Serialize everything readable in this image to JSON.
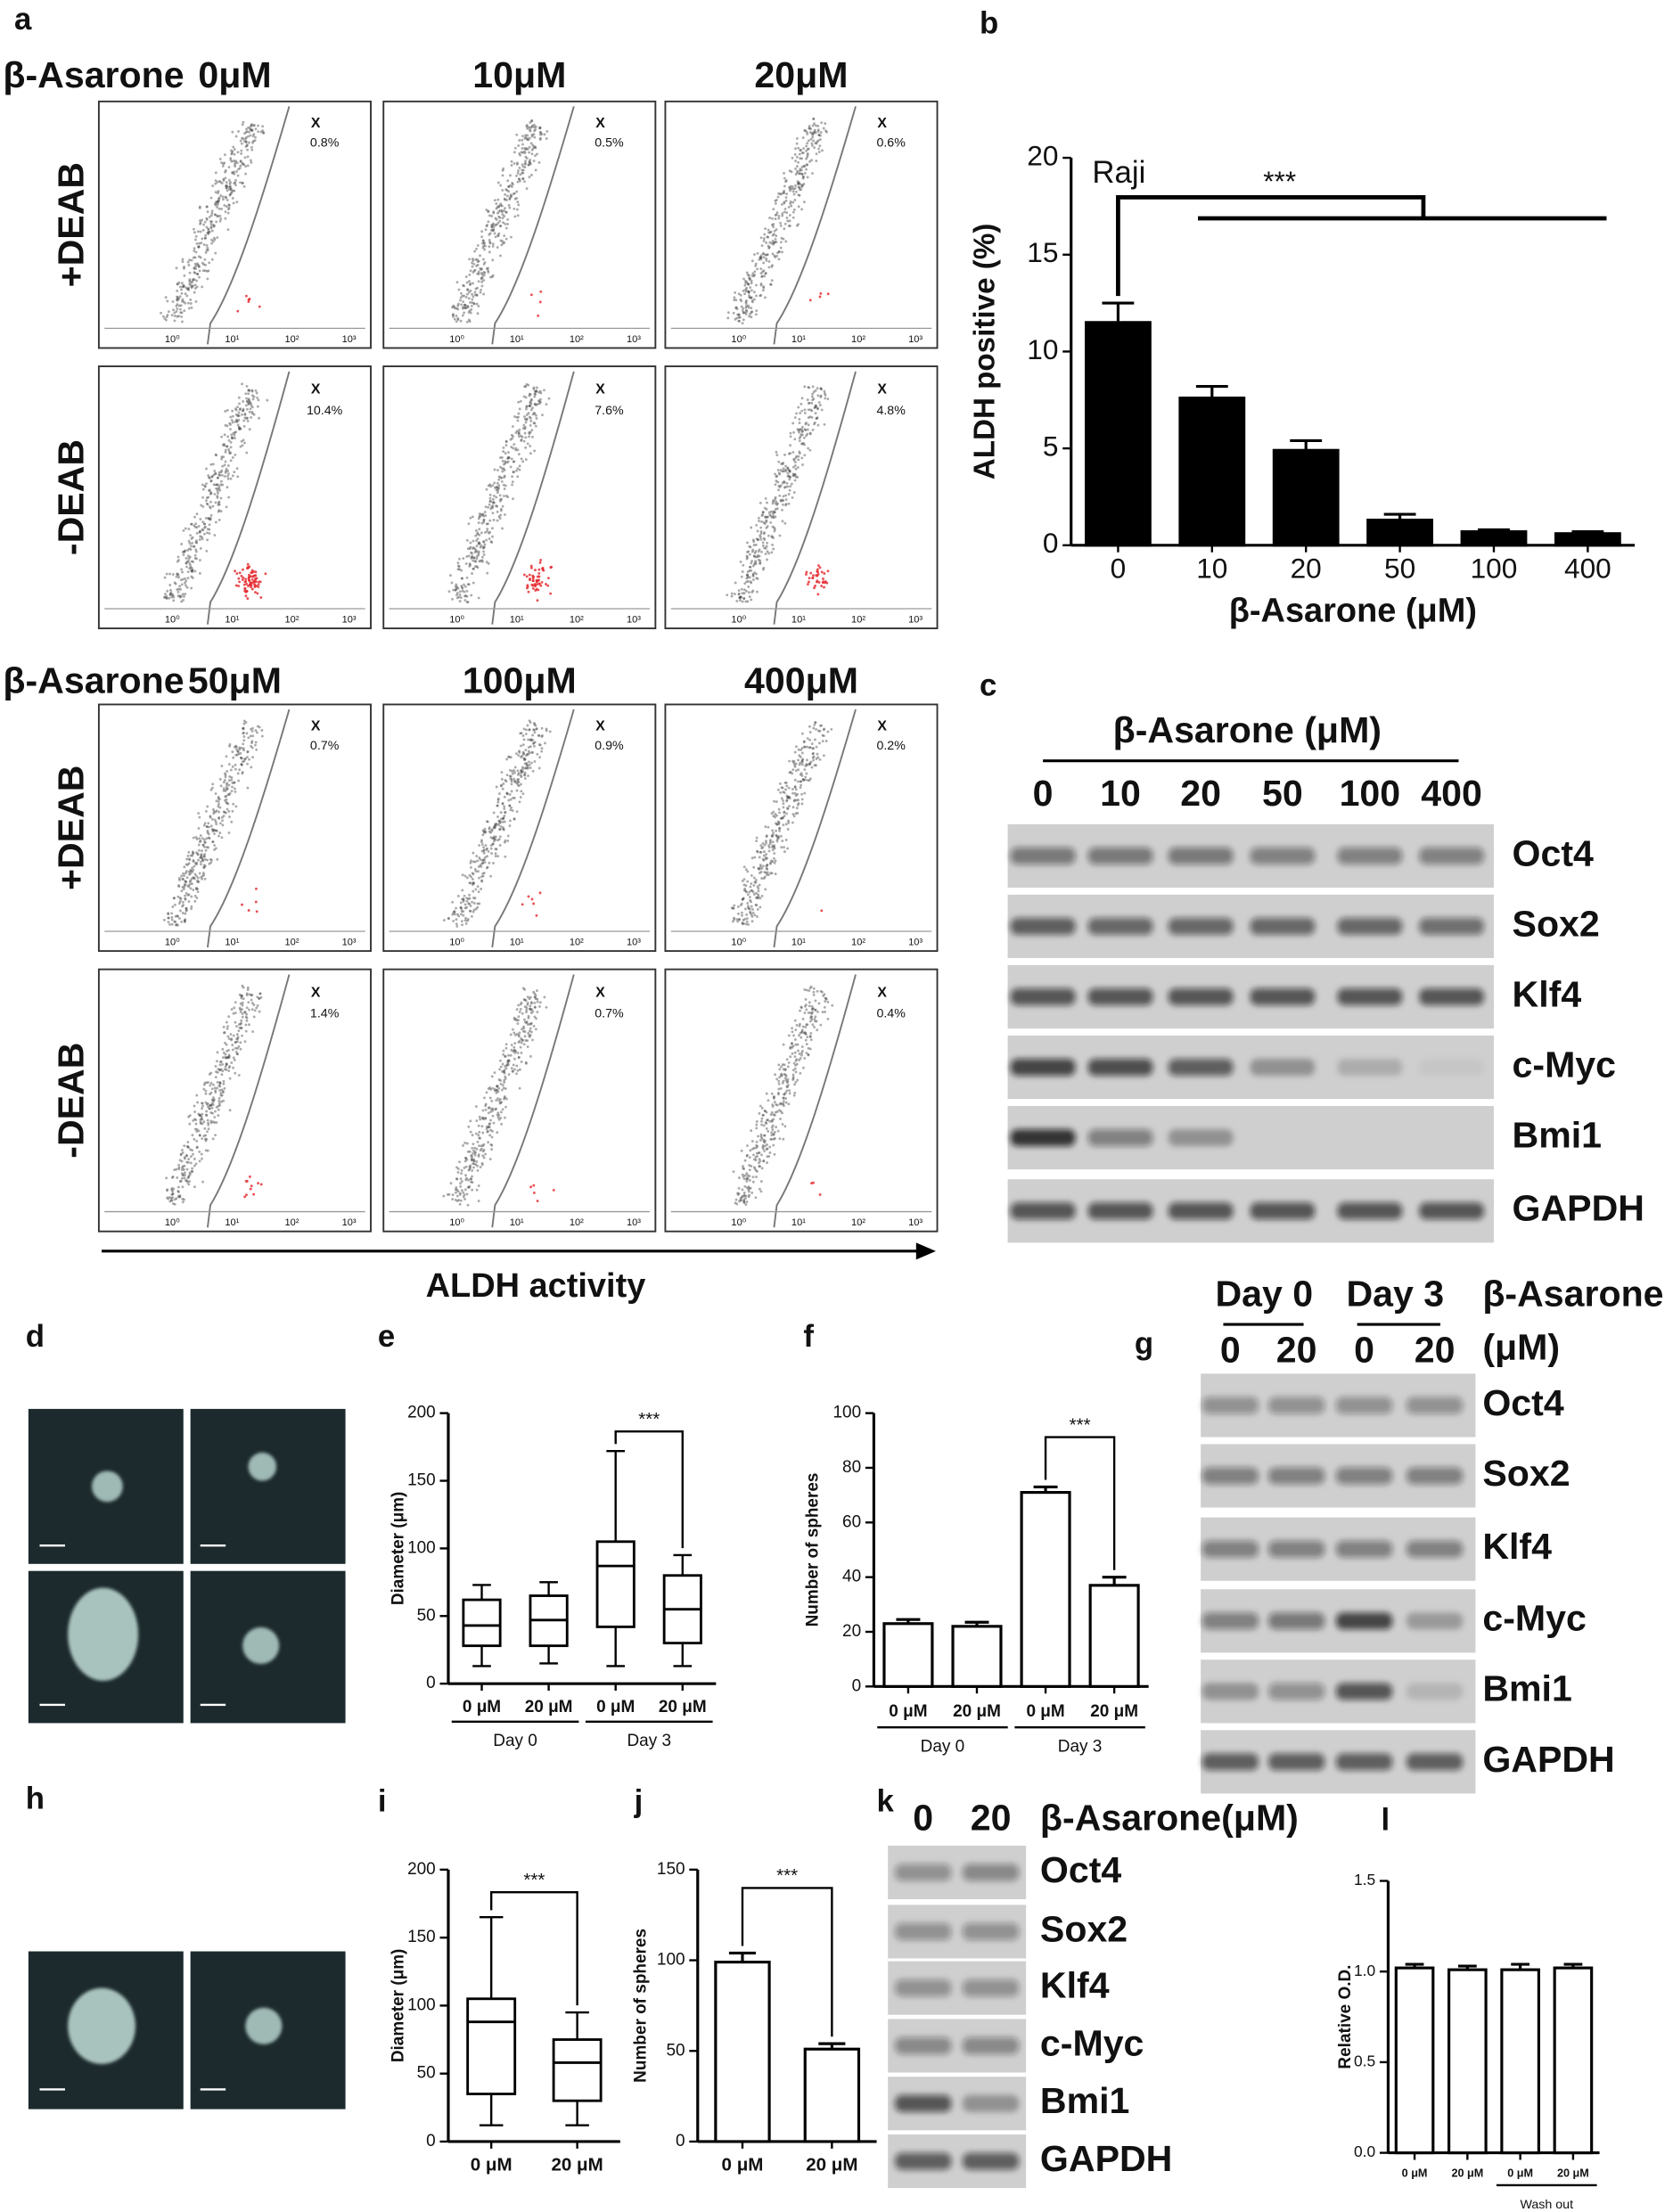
{
  "panel_labels": [
    "a",
    "b",
    "c",
    "d",
    "e",
    "f",
    "g",
    "h",
    "i",
    "j",
    "k",
    "l"
  ],
  "flow": {
    "drug": "β-Asarone",
    "gate_label": "X",
    "ticks": [
      "10⁰",
      "10¹",
      "10²",
      "10³"
    ],
    "xlabel": "ALDH activity",
    "groups": [
      {
        "doses": [
          "0μM",
          "10μM",
          "20μM"
        ],
        "rows": [
          {
            "label": "+DEAB",
            "values": [
              0.8,
              0.5,
              0.6
            ],
            "value_labels": [
              "0.8%",
              "0.5%",
              "0.6%"
            ]
          },
          {
            "label": "-DEAB",
            "values": [
              10.4,
              7.6,
              4.8
            ],
            "value_labels": [
              "10.4%",
              "7.6%",
              "4.8%"
            ]
          }
        ]
      },
      {
        "doses": [
          "50μM",
          "100μM",
          "400μM"
        ],
        "rows": [
          {
            "label": "+DEAB",
            "values": [
              0.7,
              0.9,
              0.2
            ],
            "value_labels": [
              "0.7%",
              "0.9%",
              "0.2%"
            ]
          },
          {
            "label": "-DEAB",
            "values": [
              1.4,
              0.7,
              0.4
            ],
            "value_labels": [
              "1.4%",
              "0.7%",
              "0.4%"
            ]
          }
        ]
      }
    ]
  },
  "blots": [
    {
      "title": "β-Asarone (μM)",
      "lanes": [
        "0",
        "10",
        "20",
        "50",
        "100",
        "400"
      ],
      "proteins": [
        "Oct4",
        "Sox2",
        "Klf4",
        "c-Myc",
        "Bmi1",
        "GAPDH"
      ],
      "intensity": [
        [
          0.55,
          0.55,
          0.55,
          0.5,
          0.5,
          0.5
        ],
        [
          0.7,
          0.65,
          0.65,
          0.65,
          0.65,
          0.6
        ],
        [
          0.75,
          0.75,
          0.75,
          0.75,
          0.75,
          0.75
        ],
        [
          0.85,
          0.8,
          0.7,
          0.35,
          0.2,
          0.05
        ],
        [
          0.95,
          0.5,
          0.35,
          0,
          0,
          0
        ],
        [
          0.75,
          0.75,
          0.75,
          0.75,
          0.75,
          0.75
        ]
      ]
    },
    {
      "title": [
        "β-Asarone",
        "(μM)"
      ],
      "groups": [
        "Day 0",
        "Day 3"
      ],
      "lanes": [
        "0",
        "20",
        "0",
        "20"
      ],
      "proteins": [
        "Oct4",
        "Sox2",
        "Klf4",
        "c-Myc",
        "Bmi1",
        "GAPDH"
      ],
      "intensity": [
        [
          0.4,
          0.4,
          0.4,
          0.4
        ],
        [
          0.5,
          0.5,
          0.5,
          0.5
        ],
        [
          0.5,
          0.5,
          0.5,
          0.5
        ],
        [
          0.5,
          0.55,
          0.85,
          0.3
        ],
        [
          0.35,
          0.4,
          0.75,
          0.15
        ],
        [
          0.7,
          0.7,
          0.7,
          0.7
        ]
      ]
    },
    {
      "title": "β-Asarone(μM)",
      "lanes": [
        "0",
        "20"
      ],
      "proteins": [
        "Oct4",
        "Sox2",
        "Klf4",
        "c-Myc",
        "Bmi1",
        "GAPDH"
      ],
      "intensity": [
        [
          0.4,
          0.45
        ],
        [
          0.4,
          0.4
        ],
        [
          0.4,
          0.4
        ],
        [
          0.45,
          0.45
        ],
        [
          0.75,
          0.35
        ],
        [
          0.7,
          0.7
        ]
      ]
    }
  ],
  "chart_data": [
    {
      "type": "bar",
      "annotation": "Raji",
      "significance": "***",
      "categories": [
        "0",
        "10",
        "20",
        "50",
        "100",
        "400"
      ],
      "values": [
        11.5,
        7.6,
        4.9,
        1.3,
        0.7,
        0.6
      ],
      "errors": [
        1.0,
        0.6,
        0.5,
        0.3,
        0.1,
        0.1
      ],
      "color": "#000000",
      "ylim": [
        0,
        20
      ],
      "yticks": [
        0,
        5,
        10,
        15,
        20
      ],
      "ylabel": "ALDH positive (%)",
      "xlabel": "β-Asarone (μM)"
    },
    {
      "type": "box",
      "significance": "***",
      "categories": [
        "0 μM",
        "20 μM",
        "0 μM",
        "20 μM"
      ],
      "groups": [
        "Day 0",
        "Day 3"
      ],
      "stats": [
        {
          "min": 13,
          "q1": 28,
          "median": 43,
          "q3": 62,
          "max": 73
        },
        {
          "min": 15,
          "q1": 28,
          "median": 47,
          "q3": 65,
          "max": 75
        },
        {
          "min": 13,
          "q1": 42,
          "median": 87,
          "q3": 105,
          "max": 172
        },
        {
          "min": 13,
          "q1": 30,
          "median": 55,
          "q3": 80,
          "max": 95
        }
      ],
      "ylim": [
        0,
        200
      ],
      "yticks": [
        0,
        50,
        100,
        150,
        200
      ],
      "ylabel": "Diameter (μm)"
    },
    {
      "type": "bar",
      "significance": "***",
      "categories": [
        "0 μM",
        "20 μM",
        "0 μM",
        "20 μM"
      ],
      "groups": [
        "Day 0",
        "Day 3"
      ],
      "values": [
        23,
        22,
        71,
        37
      ],
      "errors": [
        1.5,
        1.5,
        2,
        3
      ],
      "color": "#ffffff",
      "ylim": [
        0,
        100
      ],
      "yticks": [
        0,
        20,
        40,
        60,
        80,
        100
      ],
      "ylabel": "Number of spheres"
    },
    {
      "type": "box",
      "significance": "***",
      "categories": [
        "0 μM",
        "20 μM"
      ],
      "stats": [
        {
          "min": 12,
          "q1": 35,
          "median": 88,
          "q3": 105,
          "max": 165
        },
        {
          "min": 12,
          "q1": 30,
          "median": 58,
          "q3": 75,
          "max": 95
        }
      ],
      "ylim": [
        0,
        200
      ],
      "yticks": [
        0,
        50,
        100,
        150,
        200
      ],
      "ylabel": "Diameter (μm)"
    },
    {
      "type": "bar",
      "significance": "***",
      "categories": [
        "0 μM",
        "20 μM"
      ],
      "values": [
        99,
        51
      ],
      "errors": [
        5,
        3
      ],
      "color": "#ffffff",
      "ylim": [
        0,
        150
      ],
      "yticks": [
        0,
        50,
        100,
        150
      ],
      "ylabel": "Number of spheres"
    },
    {
      "type": "bar",
      "categories": [
        "0 μM",
        "20 μM",
        "0 μM",
        "20 μM"
      ],
      "groups": [
        "Wash out"
      ],
      "values": [
        1.02,
        1.01,
        1.01,
        1.02
      ],
      "errors": [
        0.02,
        0.02,
        0.03,
        0.02
      ],
      "color": "#ffffff",
      "ylim": [
        0,
        1.5
      ],
      "yticks": [
        {
          "value": 0,
          "label": "0.0"
        },
        0.5,
        {
          "value": 1,
          "label": "1.0"
        },
        1.5
      ],
      "ylabel": "Relative O.D."
    }
  ]
}
